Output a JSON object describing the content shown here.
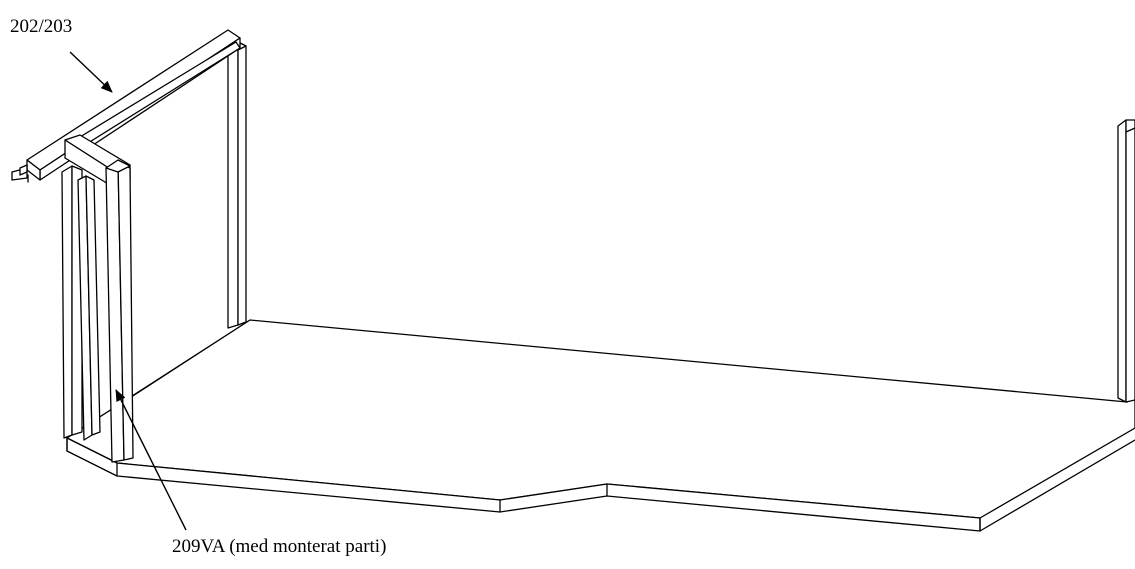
{
  "annotations": {
    "top_label": "202/203",
    "bottom_label": "209VA (med monterat parti)"
  },
  "colors": {
    "line": "#000000",
    "fill": "#ffffff"
  }
}
